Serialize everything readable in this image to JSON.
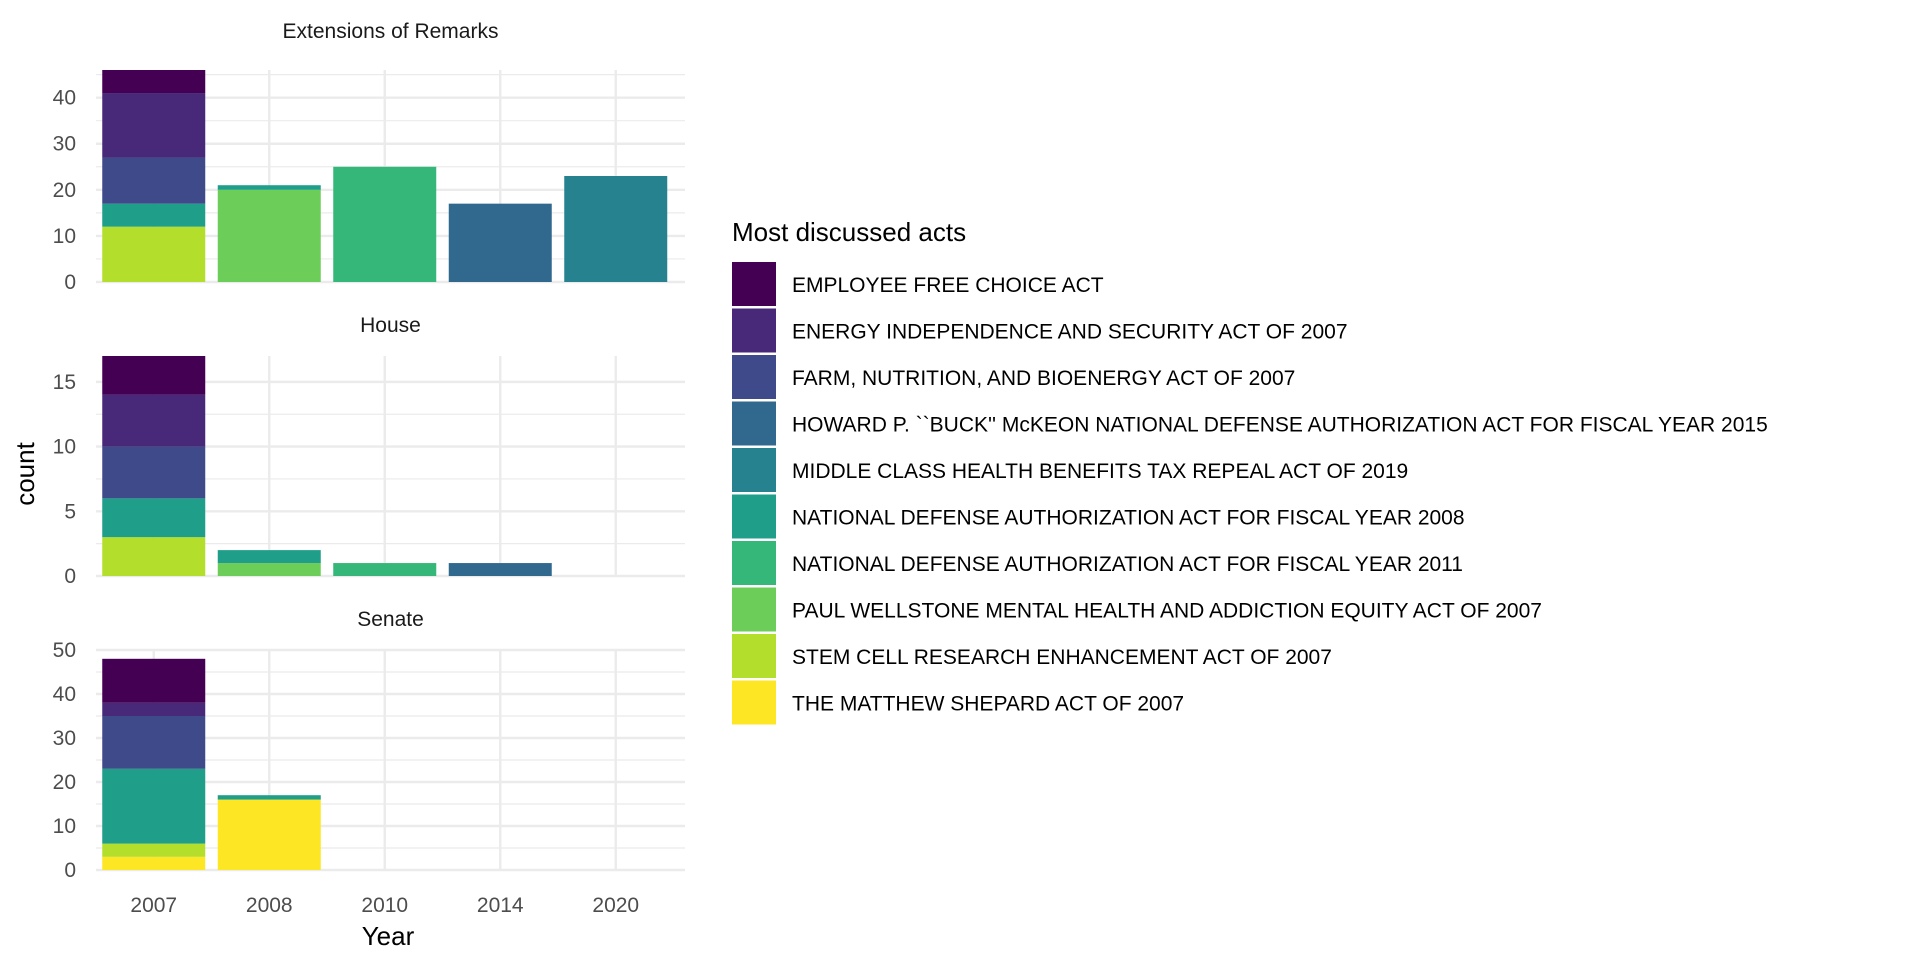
{
  "chart_data": {
    "type": "bar",
    "stacked": true,
    "faceted": true,
    "xlabel": "Year",
    "ylabel": "count",
    "categories": [
      "2007",
      "2008",
      "2010",
      "2014",
      "2020"
    ],
    "legend": {
      "title": "Most discussed acts",
      "placement": "right",
      "items": [
        {
          "label": "EMPLOYEE FREE CHOICE ACT",
          "color": "#440154"
        },
        {
          "label": "ENERGY INDEPENDENCE AND SECURITY ACT OF 2007",
          "color": "#482878"
        },
        {
          "label": "FARM, NUTRITION, AND BIOENERGY ACT OF 2007",
          "color": "#3E4A89"
        },
        {
          "label": "HOWARD P. ``BUCK'' McKEON NATIONAL DEFENSE AUTHORIZATION ACT FOR FISCAL YEAR 2015",
          "color": "#31688E"
        },
        {
          "label": "MIDDLE CLASS HEALTH BENEFITS TAX REPEAL ACT OF 2019",
          "color": "#26828E"
        },
        {
          "label": "NATIONAL DEFENSE AUTHORIZATION ACT FOR FISCAL YEAR 2008",
          "color": "#1F9E89"
        },
        {
          "label": "NATIONAL DEFENSE AUTHORIZATION ACT FOR FISCAL YEAR 2011",
          "color": "#35B779"
        },
        {
          "label": "PAUL WELLSTONE MENTAL HEALTH AND ADDICTION EQUITY ACT OF 2007",
          "color": "#6DCD59"
        },
        {
          "label": "STEM CELL RESEARCH ENHANCEMENT ACT OF 2007",
          "color": "#B4DE2C"
        },
        {
          "label": "THE MATTHEW SHEPARD ACT OF 2007",
          "color": "#FDE725"
        }
      ]
    },
    "panels": [
      {
        "title": "Extensions of Remarks",
        "ylim": [
          0,
          46
        ],
        "yticks": [
          0,
          10,
          20,
          30,
          40
        ],
        "series": [
          {
            "name": "EMPLOYEE FREE CHOICE ACT",
            "values": [
              5,
              0,
              0,
              0,
              0
            ]
          },
          {
            "name": "ENERGY INDEPENDENCE AND SECURITY ACT OF 2007",
            "values": [
              14,
              0,
              0,
              0,
              0
            ]
          },
          {
            "name": "FARM, NUTRITION, AND BIOENERGY ACT OF 2007",
            "values": [
              10,
              0,
              0,
              0,
              0
            ]
          },
          {
            "name": "HOWARD P. ``BUCK'' McKEON NATIONAL DEFENSE AUTHORIZATION ACT FOR FISCAL YEAR 2015",
            "values": [
              0,
              0,
              0,
              17,
              0
            ]
          },
          {
            "name": "MIDDLE CLASS HEALTH BENEFITS TAX REPEAL ACT OF 2019",
            "values": [
              0,
              0,
              0,
              0,
              23
            ]
          },
          {
            "name": "NATIONAL DEFENSE AUTHORIZATION ACT FOR FISCAL YEAR 2008",
            "values": [
              5,
              1,
              0,
              0,
              0
            ]
          },
          {
            "name": "NATIONAL DEFENSE AUTHORIZATION ACT FOR FISCAL YEAR 2011",
            "values": [
              0,
              0,
              25,
              0,
              0
            ]
          },
          {
            "name": "PAUL WELLSTONE MENTAL HEALTH AND ADDICTION EQUITY ACT OF 2007",
            "values": [
              0,
              20,
              0,
              0,
              0
            ]
          },
          {
            "name": "STEM CELL RESEARCH ENHANCEMENT ACT OF 2007",
            "values": [
              12,
              0,
              0,
              0,
              0
            ]
          },
          {
            "name": "THE MATTHEW SHEPARD ACT OF 2007",
            "values": [
              0,
              0,
              0,
              0,
              0
            ]
          }
        ]
      },
      {
        "title": "House",
        "ylim": [
          0,
          17
        ],
        "yticks": [
          0,
          5,
          10,
          15
        ],
        "series": [
          {
            "name": "EMPLOYEE FREE CHOICE ACT",
            "values": [
              3,
              0,
              0,
              0,
              0
            ]
          },
          {
            "name": "ENERGY INDEPENDENCE AND SECURITY ACT OF 2007",
            "values": [
              4,
              0,
              0,
              0,
              0
            ]
          },
          {
            "name": "FARM, NUTRITION, AND BIOENERGY ACT OF 2007",
            "values": [
              4,
              0,
              0,
              0,
              0
            ]
          },
          {
            "name": "HOWARD P. ``BUCK'' McKEON NATIONAL DEFENSE AUTHORIZATION ACT FOR FISCAL YEAR 2015",
            "values": [
              0,
              0,
              0,
              1,
              0
            ]
          },
          {
            "name": "MIDDLE CLASS HEALTH BENEFITS TAX REPEAL ACT OF 2019",
            "values": [
              0,
              0,
              0,
              0,
              0
            ]
          },
          {
            "name": "NATIONAL DEFENSE AUTHORIZATION ACT FOR FISCAL YEAR 2008",
            "values": [
              3,
              1,
              0,
              0,
              0
            ]
          },
          {
            "name": "NATIONAL DEFENSE AUTHORIZATION ACT FOR FISCAL YEAR 2011",
            "values": [
              0,
              0,
              1,
              0,
              0
            ]
          },
          {
            "name": "PAUL WELLSTONE MENTAL HEALTH AND ADDICTION EQUITY ACT OF 2007",
            "values": [
              0,
              1,
              0,
              0,
              0
            ]
          },
          {
            "name": "STEM CELL RESEARCH ENHANCEMENT ACT OF 2007",
            "values": [
              3,
              0,
              0,
              0,
              0
            ]
          },
          {
            "name": "THE MATTHEW SHEPARD ACT OF 2007",
            "values": [
              0,
              0,
              0,
              0,
              0
            ]
          }
        ]
      },
      {
        "title": "Senate",
        "ylim": [
          0,
          50
        ],
        "yticks": [
          0,
          10,
          20,
          30,
          40,
          50
        ],
        "series": [
          {
            "name": "EMPLOYEE FREE CHOICE ACT",
            "values": [
              10,
              0,
              0,
              0,
              0
            ]
          },
          {
            "name": "ENERGY INDEPENDENCE AND SECURITY ACT OF 2007",
            "values": [
              3,
              0,
              0,
              0,
              0
            ]
          },
          {
            "name": "FARM, NUTRITION, AND BIOENERGY ACT OF 2007",
            "values": [
              12,
              0,
              0,
              0,
              0
            ]
          },
          {
            "name": "HOWARD P. ``BUCK'' McKEON NATIONAL DEFENSE AUTHORIZATION ACT FOR FISCAL YEAR 2015",
            "values": [
              0,
              0,
              0,
              0,
              0
            ]
          },
          {
            "name": "MIDDLE CLASS HEALTH BENEFITS TAX REPEAL ACT OF 2019",
            "values": [
              0,
              0,
              0,
              0,
              0
            ]
          },
          {
            "name": "NATIONAL DEFENSE AUTHORIZATION ACT FOR FISCAL YEAR 2008",
            "values": [
              17,
              1,
              0,
              0,
              0
            ]
          },
          {
            "name": "NATIONAL DEFENSE AUTHORIZATION ACT FOR FISCAL YEAR 2011",
            "values": [
              0,
              0,
              0,
              0,
              0
            ]
          },
          {
            "name": "PAUL WELLSTONE MENTAL HEALTH AND ADDICTION EQUITY ACT OF 2007",
            "values": [
              0,
              0,
              0,
              0,
              0
            ]
          },
          {
            "name": "STEM CELL RESEARCH ENHANCEMENT ACT OF 2007",
            "values": [
              3,
              0,
              0,
              0,
              0
            ]
          },
          {
            "name": "THE MATTHEW SHEPARD ACT OF 2007",
            "values": [
              3,
              16,
              0,
              0,
              0
            ]
          }
        ]
      }
    ]
  }
}
